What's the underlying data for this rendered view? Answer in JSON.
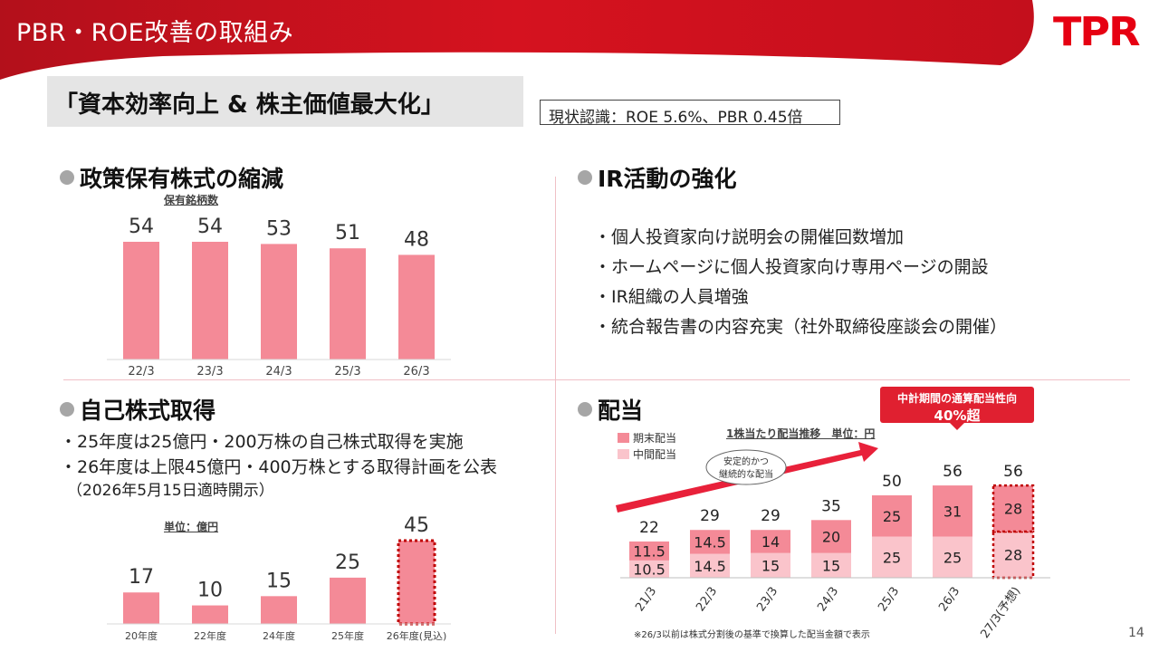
{
  "header": {
    "title": "PBR・ROE改善の取組み",
    "logo": "TPR",
    "brand_color": "#d7101e"
  },
  "headline": "「資本効率向上 & 株主価値最大化」",
  "status": "現状認識：ROE 5.6%、PBR 0.45倍",
  "sections": {
    "holdings_title": "政策保有株式の縮減",
    "ir_title": "IR活動の強化",
    "buyback_title": "自己株式取得",
    "dividend_title": "配当"
  },
  "ir_items": [
    "・個人投資家向け説明会の開催回数増加",
    "・ホームページに個人投資家向け専用ページの開設",
    "・IR組織の人員増強",
    "・統合報告書の内容充実（社外取締役座談会の開催）"
  ],
  "buyback_text": {
    "line1": "・25年度は25億円・200万株の自己株式取得を実施",
    "line2": "・26年度は上限45億円・400万株とする取得計画を公表",
    "note": "（2026年5月15日適時開示）"
  },
  "callout": {
    "line1": "中計期間の通算配当性向",
    "line2": "40%超"
  },
  "legend": {
    "year_end": "期末配当",
    "interim": "中間配当"
  },
  "footnote": "※26/3以前は株式分割後の基準で換算した配当金額で表示",
  "page_number": "14",
  "chart_data": [
    {
      "type": "bar",
      "title": "保有銘柄数",
      "categories": [
        "22/3",
        "23/3",
        "24/3",
        "25/3",
        "26/3"
      ],
      "values": [
        54,
        54,
        53,
        51,
        48
      ],
      "color": "#f48a97"
    },
    {
      "type": "bar",
      "title": "単位：億円",
      "categories": [
        "20年度",
        "22年度",
        "24年度",
        "25年度",
        "26年度(見込)"
      ],
      "values": [
        17,
        10,
        15,
        25,
        45
      ],
      "highlight_last": true,
      "color": "#f48a97",
      "highlight_border": "#c00000"
    },
    {
      "type": "bar",
      "stacked": true,
      "title": "1株当たり配当推移　単位：円",
      "categories": [
        "21/3",
        "22/3",
        "23/3",
        "24/3",
        "25/3",
        "26/3",
        "27/3(予想)"
      ],
      "series": [
        {
          "name": "中間配当",
          "values": [
            10.5,
            14.5,
            15,
            15,
            25,
            25,
            28
          ],
          "color": "#fac4cb"
        },
        {
          "name": "期末配当",
          "values": [
            11.5,
            14.5,
            14,
            20,
            25,
            31,
            28
          ],
          "color": "#f48a97"
        }
      ],
      "totals": [
        22,
        29,
        29,
        35,
        50,
        56,
        56
      ],
      "forecast_last": true,
      "arrow_label": "安定的かつ\n継続的な配当"
    }
  ]
}
